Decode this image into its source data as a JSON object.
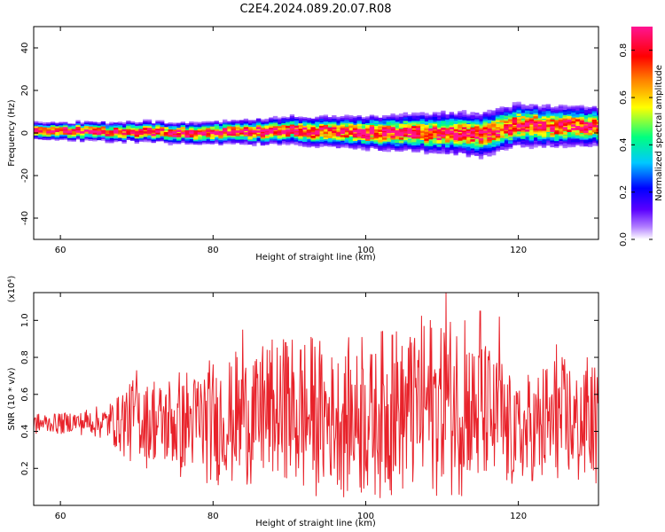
{
  "title": "C2E4.2024.089.20.07.R08",
  "chart_data": [
    {
      "type": "heatmap",
      "xlabel": "Height of straight line (km)",
      "ylabel": "Frequency (Hz)",
      "xlim": [
        56.5,
        130.5
      ],
      "ylim": [
        -50,
        50
      ],
      "xticks": [
        60,
        80,
        100,
        120
      ],
      "yticks": [
        -40,
        -20,
        0,
        20,
        40
      ],
      "colorbar": {
        "label": "Normalized spectral amplitude",
        "range": [
          0.0,
          0.9
        ],
        "ticks": [
          0.0,
          0.2,
          0.4,
          0.6,
          0.8
        ],
        "colormap": "rainbow-purple-to-magenta",
        "stops": [
          "#ffffff",
          "#7b00ff",
          "#0000ff",
          "#00c8ff",
          "#00ff80",
          "#ffff00",
          "#ff8000",
          "#ff0000",
          "#ff1493"
        ]
      },
      "ridge_center_freq_hz": [
        {
          "x": 57,
          "y": 1
        },
        {
          "x": 70,
          "y": 0.5
        },
        {
          "x": 80,
          "y": 0
        },
        {
          "x": 90,
          "y": 1
        },
        {
          "x": 100,
          "y": 0
        },
        {
          "x": 110,
          "y": 0
        },
        {
          "x": 115,
          "y": -1
        },
        {
          "x": 120,
          "y": 4
        },
        {
          "x": 125,
          "y": 3
        },
        {
          "x": 130,
          "y": 3
        }
      ],
      "ridge_half_width_hz": [
        {
          "x": 57,
          "y": 3
        },
        {
          "x": 80,
          "y": 4
        },
        {
          "x": 100,
          "y": 6
        },
        {
          "x": 115,
          "y": 8
        },
        {
          "x": 130,
          "y": 7
        }
      ]
    },
    {
      "type": "line",
      "xlabel": "Height of straight line (km)",
      "ylabel": "SNR (10 * v/v)",
      "multiplier": "(x10⁴)",
      "xlim": [
        56.5,
        130.5
      ],
      "ylim": [
        0.0,
        1.15
      ],
      "xticks": [
        60,
        80,
        100,
        120
      ],
      "yticks": [
        0.2,
        0.4,
        0.6,
        0.8,
        1.0
      ],
      "color": "#e8222a",
      "envelope": [
        {
          "x": 56.5,
          "low": 0.38,
          "high": 0.5
        },
        {
          "x": 62,
          "low": 0.38,
          "high": 0.52
        },
        {
          "x": 66,
          "low": 0.35,
          "high": 0.55
        },
        {
          "x": 69,
          "low": 0.22,
          "high": 0.72
        },
        {
          "x": 75,
          "low": 0.12,
          "high": 0.75
        },
        {
          "x": 82,
          "low": 0.08,
          "high": 0.85
        },
        {
          "x": 90,
          "low": 0.03,
          "high": 0.95
        },
        {
          "x": 100,
          "low": 0.01,
          "high": 0.95
        },
        {
          "x": 110,
          "low": 0.02,
          "high": 1.1
        },
        {
          "x": 116,
          "low": 0.02,
          "high": 0.95
        },
        {
          "x": 120,
          "low": 0.05,
          "high": 0.7
        },
        {
          "x": 125,
          "low": 0.03,
          "high": 0.85
        },
        {
          "x": 130.5,
          "low": 0.08,
          "high": 0.78
        }
      ],
      "peaks": [
        {
          "x": 70.0,
          "y": 0.73
        },
        {
          "x": 83.9,
          "y": 0.95
        },
        {
          "x": 86.5,
          "y": 0.86
        },
        {
          "x": 89.5,
          "y": 0.88
        },
        {
          "x": 91.5,
          "y": 0.84
        },
        {
          "x": 99.5,
          "y": 0.91
        },
        {
          "x": 103.5,
          "y": 0.92
        },
        {
          "x": 106.0,
          "y": 0.88
        },
        {
          "x": 110.5,
          "y": 1.15
        },
        {
          "x": 113.0,
          "y": 1.0
        },
        {
          "x": 115.0,
          "y": 1.05
        },
        {
          "x": 117.5,
          "y": 1.02
        },
        {
          "x": 125.0,
          "y": 0.87
        },
        {
          "x": 129.0,
          "y": 0.8
        }
      ]
    }
  ]
}
